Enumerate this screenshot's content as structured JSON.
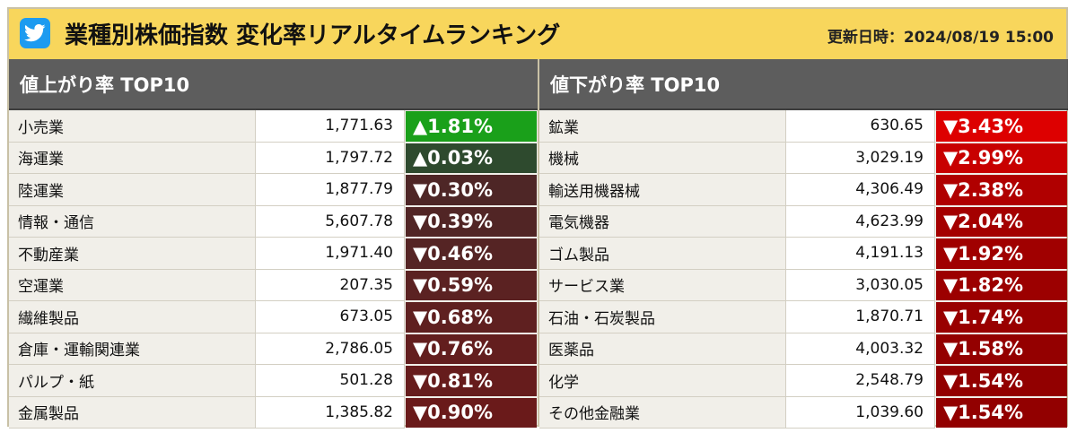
{
  "header": {
    "title": "業種別株価指数 変化率リアルタイムランキング",
    "updated": "更新日時：2024/08/19 15:00",
    "icon": "twitter-bird-icon"
  },
  "gainers": {
    "heading": "値上がり率 TOP10",
    "rows": [
      {
        "name": "小売業",
        "value": "1,771.63",
        "rate": "▲1.81%",
        "color": "#1aa01a"
      },
      {
        "name": "海運業",
        "value": "1,797.72",
        "rate": "▲0.03%",
        "color": "#2e4a2e"
      },
      {
        "name": "陸運業",
        "value": "1,877.79",
        "rate": "▼0.30%",
        "color": "#4e2626"
      },
      {
        "name": "情報・通信",
        "value": "5,607.78",
        "rate": "▼0.39%",
        "color": "#512525"
      },
      {
        "name": "不動産業",
        "value": "1,971.40",
        "rate": "▼0.46%",
        "color": "#552424"
      },
      {
        "name": "空運業",
        "value": "207.35",
        "rate": "▼0.59%",
        "color": "#5b2222"
      },
      {
        "name": "繊維製品",
        "value": "673.05",
        "rate": "▼0.68%",
        "color": "#5f2020"
      },
      {
        "name": "倉庫・運輸関連業",
        "value": "2,786.05",
        "rate": "▼0.76%",
        "color": "#631e1e"
      },
      {
        "name": "パルプ・紙",
        "value": "501.28",
        "rate": "▼0.81%",
        "color": "#661c1c"
      },
      {
        "name": "金属製品",
        "value": "1,385.82",
        "rate": "▼0.90%",
        "color": "#6a1a1a"
      }
    ]
  },
  "decliners": {
    "heading": "値下がり率 TOP10",
    "rows": [
      {
        "name": "鉱業",
        "value": "630.65",
        "rate": "▼3.43%",
        "color": "#dd0000"
      },
      {
        "name": "機械",
        "value": "3,029.19",
        "rate": "▼2.99%",
        "color": "#c80000"
      },
      {
        "name": "輸送用機器械",
        "value": "4,306.49",
        "rate": "▼2.38%",
        "color": "#b00000"
      },
      {
        "name": "電気機器",
        "value": "4,623.99",
        "rate": "▼2.04%",
        "color": "#a40000"
      },
      {
        "name": "ゴム製品",
        "value": "4,191.13",
        "rate": "▼1.92%",
        "color": "#a00000"
      },
      {
        "name": "サービス業",
        "value": "3,030.05",
        "rate": "▼1.82%",
        "color": "#9c0000"
      },
      {
        "name": "石油・石炭製品",
        "value": "1,870.71",
        "rate": "▼1.74%",
        "color": "#990000"
      },
      {
        "name": "医薬品",
        "value": "4,003.32",
        "rate": "▼1.58%",
        "color": "#940000"
      },
      {
        "name": "化学",
        "value": "2,548.79",
        "rate": "▼1.54%",
        "color": "#920000"
      },
      {
        "name": "その他金融業",
        "value": "1,039.60",
        "rate": "▼1.54%",
        "color": "#920000"
      }
    ]
  }
}
